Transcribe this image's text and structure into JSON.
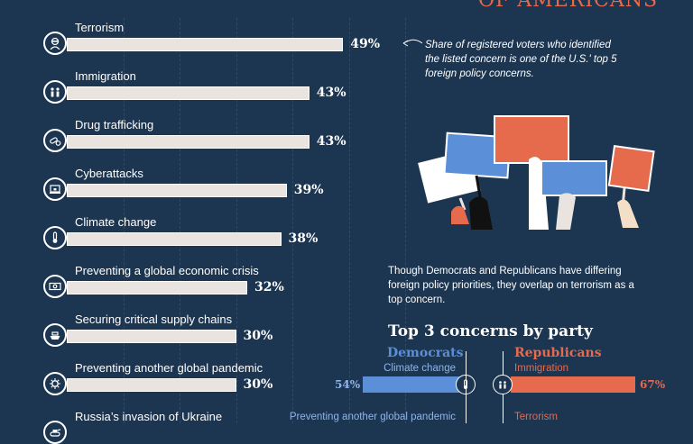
{
  "header": {
    "title_fragment": "OF AMERICANS"
  },
  "annotation": "Share of registered voters who identified the listed concern is one of the U.S.' top 5 foreign policy concerns.",
  "intro_text": "Though Democrats and Republicans have differing foreign policy priorities, they overlap on terrorism as a top concern.",
  "party_section": {
    "title": "Top 3 concerns by party",
    "democrats": {
      "name": "Democrats",
      "color": "#5b8fd8",
      "items": [
        {
          "label": "Climate change",
          "value": "54%",
          "icon": "thermometer-icon"
        },
        {
          "label": "Preventing another global pandemic",
          "value": "",
          "icon": "virus-icon"
        }
      ]
    },
    "republicans": {
      "name": "Republicans",
      "color": "#e66a4c",
      "items": [
        {
          "label": "Immigration",
          "value": "67%",
          "icon": "people-icon"
        },
        {
          "label": "Terrorism",
          "value": "",
          "icon": "masked-person-icon"
        }
      ]
    }
  },
  "colors": {
    "background": "#1c3550",
    "bar": "#e9e4df",
    "accent": "#e66a4c",
    "democrat": "#5b8fd8"
  },
  "chart_data": {
    "type": "bar",
    "orientation": "horizontal",
    "categories": [
      "Terrorism",
      "Immigration",
      "Drug trafficking",
      "Cyberattacks",
      "Climate change",
      "Preventing a global economic crisis",
      "Securing critical supply chains",
      "Preventing another global pandemic",
      "Russia’s invasion of Ukraine"
    ],
    "values": [
      49,
      43,
      43,
      39,
      38,
      32,
      30,
      30,
      null
    ],
    "value_labels": [
      "49%",
      "43%",
      "43%",
      "39%",
      "38%",
      "32%",
      "30%",
      "30%",
      ""
    ],
    "icons": [
      "masked-person-icon",
      "people-icon",
      "pills-icon",
      "laptop-lock-icon",
      "thermometer-icon",
      "money-icon",
      "ship-icon",
      "virus-icon",
      "tank-icon"
    ],
    "unit": "%",
    "grid": true,
    "xlim": [
      0,
      60
    ],
    "title": "",
    "xlabel": "",
    "ylabel": ""
  }
}
